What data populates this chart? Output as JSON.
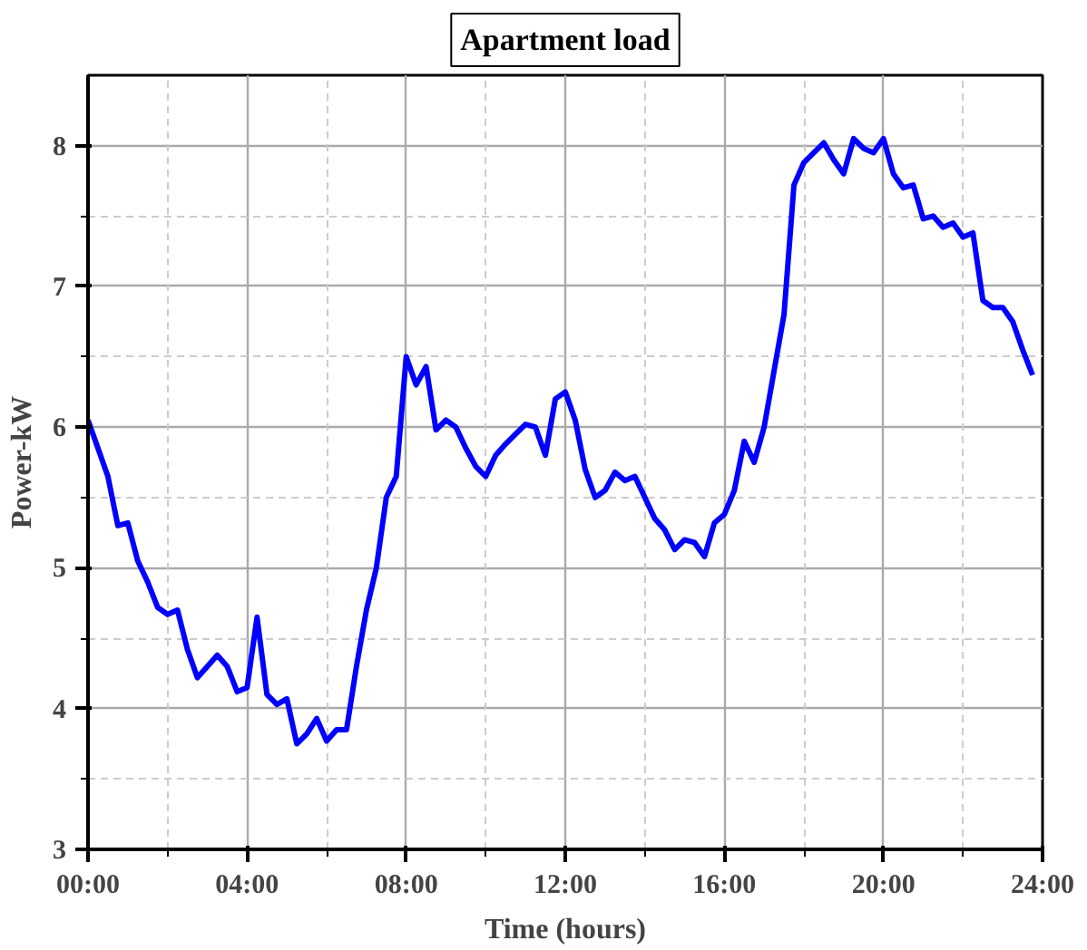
{
  "chart_data": {
    "type": "line",
    "title": "Apartment load",
    "xlabel": "Time (hours)",
    "ylabel": "Power-kW",
    "x": [
      0,
      0.25,
      0.5,
      0.75,
      1,
      1.25,
      1.5,
      1.75,
      2,
      2.25,
      2.5,
      2.75,
      3,
      3.25,
      3.5,
      3.75,
      4,
      4.25,
      4.5,
      4.75,
      5,
      5.25,
      5.5,
      5.75,
      6,
      6.25,
      6.5,
      6.75,
      7,
      7.25,
      7.5,
      7.75,
      8,
      8.25,
      8.5,
      8.75,
      9,
      9.25,
      9.5,
      9.75,
      10,
      10.25,
      10.5,
      10.75,
      11,
      11.25,
      11.5,
      11.75,
      12,
      12.25,
      12.5,
      12.75,
      13,
      13.25,
      13.5,
      13.75,
      14,
      14.25,
      14.5,
      14.75,
      15,
      15.25,
      15.5,
      15.75,
      16,
      16.25,
      16.5,
      16.75,
      17,
      17.25,
      17.5,
      17.75,
      18,
      18.25,
      18.5,
      18.75,
      19,
      19.25,
      19.5,
      19.75,
      20,
      20.25,
      20.5,
      20.75,
      21,
      21.25,
      21.5,
      21.75,
      22,
      22.25,
      22.5,
      22.75,
      23,
      23.25,
      23.5,
      23.75
    ],
    "series": [
      {
        "color": "#0000ff",
        "values": [
          6.05,
          5.85,
          5.65,
          5.3,
          5.32,
          5.05,
          4.9,
          4.72,
          4.67,
          4.7,
          4.42,
          4.22,
          4.3,
          4.38,
          4.3,
          4.12,
          4.15,
          4.65,
          4.1,
          4.03,
          4.07,
          3.75,
          3.82,
          3.93,
          3.77,
          3.85,
          3.85,
          4.3,
          4.7,
          5.0,
          5.5,
          5.65,
          6.5,
          6.3,
          6.43,
          5.98,
          6.05,
          6.0,
          5.85,
          5.72,
          5.65,
          5.8,
          5.88,
          5.95,
          6.02,
          6.0,
          5.8,
          6.2,
          6.25,
          6.05,
          5.7,
          5.5,
          5.55,
          5.68,
          5.62,
          5.65,
          5.5,
          5.35,
          5.27,
          5.13,
          5.2,
          5.18,
          5.08,
          5.32,
          5.38,
          5.55,
          5.9,
          5.75,
          6.0,
          6.4,
          6.8,
          7.72,
          7.88,
          7.95,
          8.02,
          7.9,
          7.8,
          8.05,
          7.98,
          7.95,
          8.05,
          7.8,
          7.7,
          7.72,
          7.48,
          7.5,
          7.42,
          7.45,
          7.35,
          7.38,
          6.9,
          6.85,
          6.85,
          6.75,
          6.55,
          6.37
        ]
      }
    ],
    "xlim": [
      0,
      24
    ],
    "ylim": [
      3,
      8.5
    ],
    "xticks": [
      {
        "value": 0,
        "label": "00:00"
      },
      {
        "value": 2,
        "label": null
      },
      {
        "value": 4,
        "label": "04:00"
      },
      {
        "value": 6,
        "label": null
      },
      {
        "value": 8,
        "label": "08:00"
      },
      {
        "value": 10,
        "label": null
      },
      {
        "value": 12,
        "label": "12:00"
      },
      {
        "value": 14,
        "label": null
      },
      {
        "value": 16,
        "label": "16:00"
      },
      {
        "value": 18,
        "label": null
      },
      {
        "value": 20,
        "label": "20:00"
      },
      {
        "value": 22,
        "label": null
      },
      {
        "value": 24,
        "label": "24:00"
      }
    ],
    "yticks": [
      3,
      {
        "value": 3.5,
        "label": null
      },
      4,
      {
        "value": 4.5,
        "label": null
      },
      5,
      {
        "value": 5.5,
        "label": null
      },
      6,
      {
        "value": 6.5,
        "label": null
      },
      7,
      {
        "value": 7.5,
        "label": null
      },
      8
    ],
    "grid": true,
    "line_style": "solid",
    "marker": "none"
  }
}
